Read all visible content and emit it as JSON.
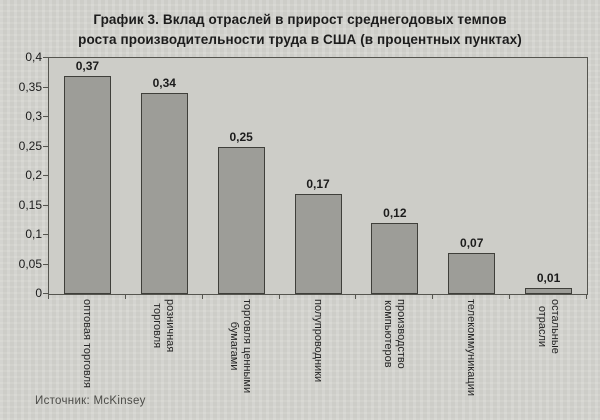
{
  "title": {
    "lines": [
      "График 3. Вклад отраслей в прирост среднегодовых темпов",
      "роста производительности труда в США (в процентных пунктах)"
    ]
  },
  "source": "Источник: McKinsey",
  "colors": {
    "background": "#d6d6d1",
    "plot_background": "#cdcdc8",
    "bar_fill": "#9d9d98",
    "bar_border": "#3f3f3a",
    "axis": "#55554f",
    "text": "#1c1c1c",
    "source_text": "#4c4c48"
  },
  "chart_data": {
    "type": "bar",
    "title": "График 3. Вклад отраслей в прирост среднегодовых темпов роста производительности труда в США (в процентных пунктах)",
    "categories": [
      "оптовая торговля",
      "розничная\nторговля",
      "торговля ценными\nбумагами",
      "полупроводники",
      "производство\nкомпьютеров",
      "телекоммуникации",
      "остальные\nотрасли"
    ],
    "values": [
      0.37,
      0.34,
      0.25,
      0.17,
      0.12,
      0.07,
      0.01
    ],
    "value_labels": [
      "0,37",
      "0,34",
      "0,25",
      "0,17",
      "0,12",
      "0,07",
      "0,01"
    ],
    "y_ticks": [
      {
        "value": 0.4,
        "label": "0,4"
      },
      {
        "value": 0.35,
        "label": "0,35"
      },
      {
        "value": 0.3,
        "label": "0,3"
      },
      {
        "value": 0.25,
        "label": "0,25"
      },
      {
        "value": 0.2,
        "label": "0,2"
      },
      {
        "value": 0.15,
        "label": "0,15"
      },
      {
        "value": 0.1,
        "label": "0,1"
      },
      {
        "value": 0.05,
        "label": "0,05"
      },
      {
        "value": 0,
        "label": "0"
      }
    ],
    "ylim": [
      0,
      0.4
    ],
    "xlabel": "",
    "ylabel": "",
    "grid": false,
    "legend": false,
    "source": "Источник: McKinsey"
  }
}
